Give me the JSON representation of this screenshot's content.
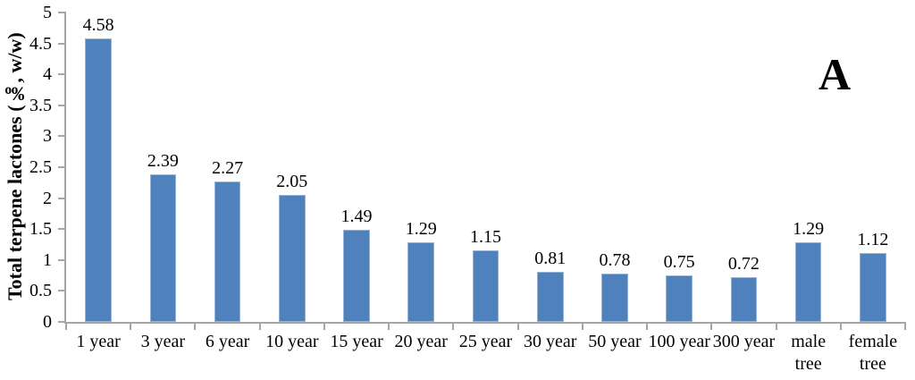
{
  "chart_data": {
    "type": "bar",
    "ylabel": "Total terpene lactones (‰, w/w)",
    "xlabel": "",
    "panel_label": "A",
    "categories": [
      "1 year",
      "3 year",
      "6 year",
      "10 year",
      "15 year",
      "20 year",
      "25 year",
      "30 year",
      "50 year",
      "100 year",
      "300 year",
      "male tree",
      "female tree"
    ],
    "category_labels": [
      "1 year",
      "3 year",
      "6 year",
      "10 year",
      "15 year",
      "20 year",
      "25 year",
      "30 year",
      "50 year",
      "100 year",
      "300 year",
      "male\ntree",
      "female\ntree"
    ],
    "values": [
      4.58,
      2.39,
      2.27,
      2.05,
      1.49,
      1.29,
      1.15,
      0.81,
      0.78,
      0.75,
      0.72,
      1.29,
      1.12
    ],
    "value_labels": [
      "4.58",
      "2.39",
      "2.27",
      "2.05",
      "1.49",
      "1.29",
      "1.15",
      "0.81",
      "0.78",
      "0.75",
      "0.72",
      "1.29",
      "1.12"
    ],
    "ylim": [
      0,
      5
    ],
    "yticks": [
      0,
      0.5,
      1,
      1.5,
      2,
      2.5,
      3,
      3.5,
      4,
      4.5,
      5
    ],
    "ytick_labels": [
      "0",
      "0.5",
      "1",
      "1.5",
      "2",
      "2.5",
      "3",
      "3.5",
      "4",
      "4.5",
      "5"
    ],
    "grid": false,
    "legend_position": "none",
    "colors": {
      "bar_fill": "#4F81BD",
      "bar_border": "#95B3D7",
      "axis": "#A6A6A6",
      "text": "#000000"
    }
  }
}
